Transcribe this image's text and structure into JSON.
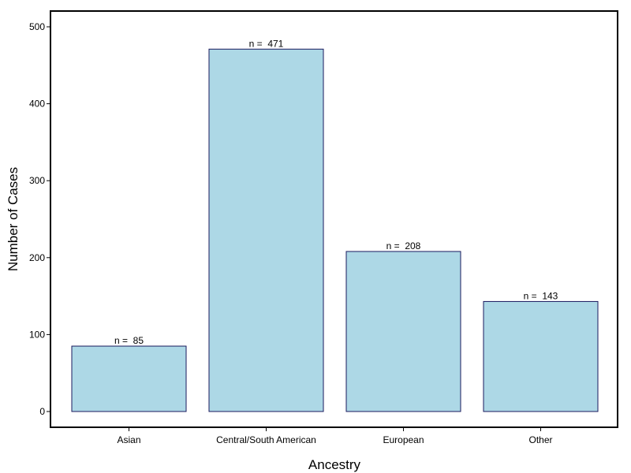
{
  "chart_data": {
    "type": "bar",
    "categories": [
      "Asian",
      "Central/South American",
      "European",
      "Other"
    ],
    "values": [
      85,
      471,
      208,
      143
    ],
    "data_labels": [
      "n =  85",
      "n =  471",
      "n =  208",
      "n =  143"
    ],
    "xlabel": "Ancestry",
    "ylabel": "Number of Cases",
    "ylim": [
      0,
      500
    ],
    "yticks": [
      0,
      100,
      200,
      300,
      400,
      500
    ],
    "grid": false,
    "bar_fill": "#add8e6",
    "bar_stroke": "#1a1a5e",
    "frame_color": "#000000"
  }
}
